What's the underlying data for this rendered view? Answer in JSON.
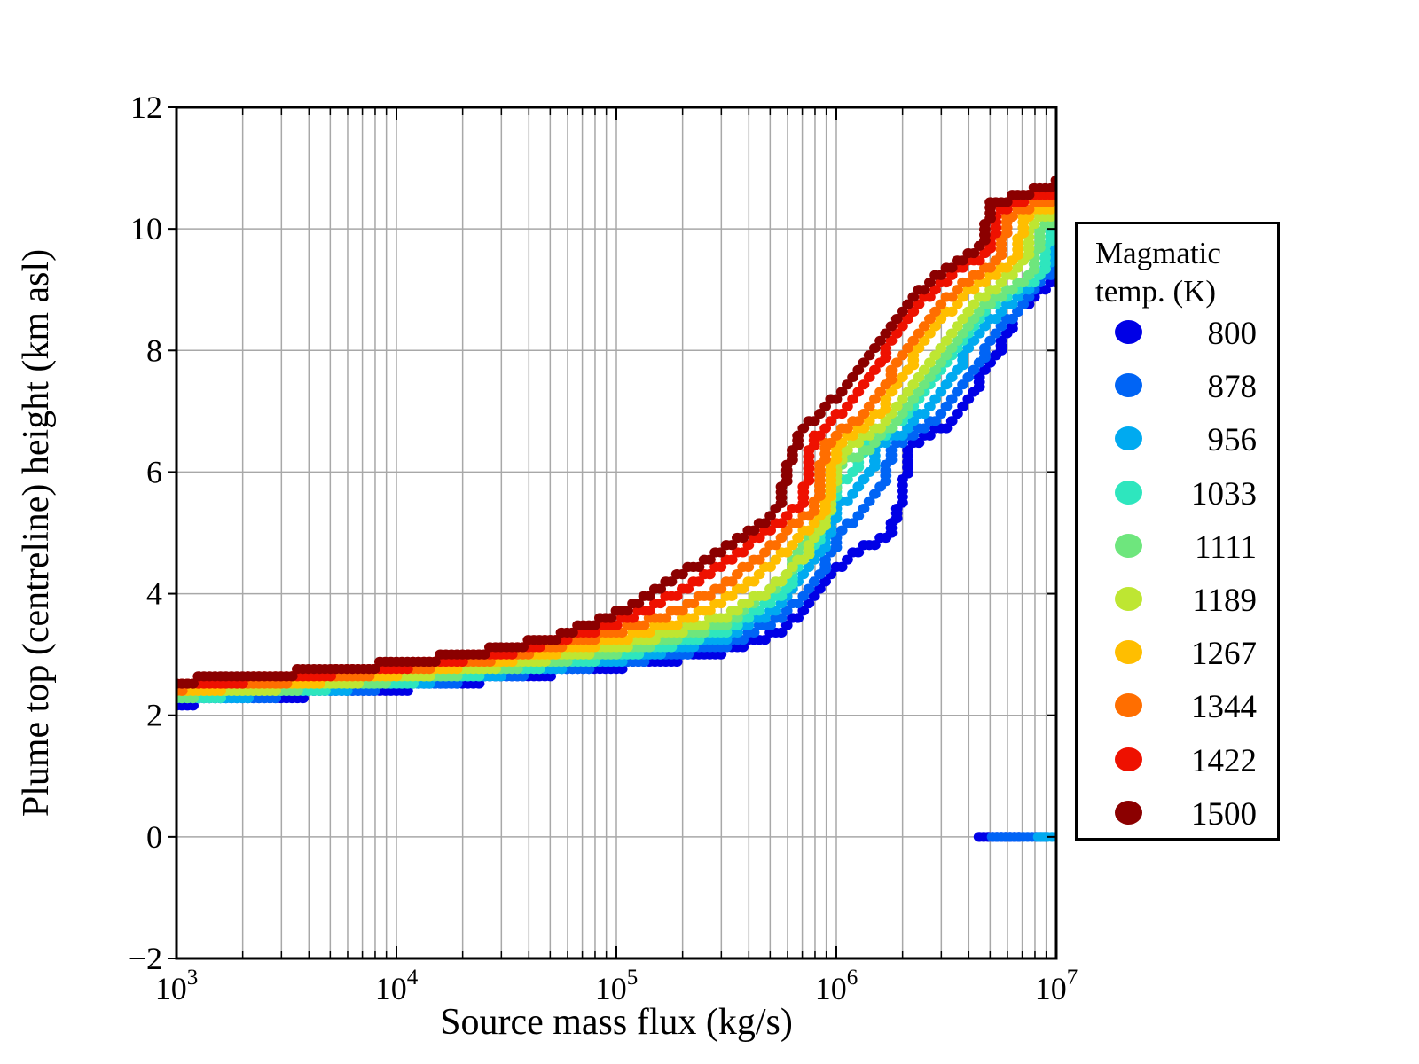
{
  "figure": {
    "background": "#ffffff",
    "frame_color": "#000000",
    "grid_color": "#a8a8a8"
  },
  "axes": {
    "x": {
      "label": "Source mass flux (kg/s)",
      "scale": "log",
      "min_log": 3,
      "max_log": 7,
      "major_ticks": [
        {
          "log": 3,
          "base": "10",
          "exp": "3"
        },
        {
          "log": 4,
          "base": "10",
          "exp": "4"
        },
        {
          "log": 5,
          "base": "10",
          "exp": "5"
        },
        {
          "log": 6,
          "base": "10",
          "exp": "6"
        },
        {
          "log": 7,
          "base": "10",
          "exp": "7"
        }
      ]
    },
    "y": {
      "label": "Plume top (centreline) height (km asl)",
      "min": -2,
      "max": 12,
      "major_ticks": [
        {
          "value": 12,
          "label": "12"
        },
        {
          "value": 10,
          "label": "10"
        },
        {
          "value": 8,
          "label": "8"
        },
        {
          "value": 6,
          "label": "6"
        },
        {
          "value": 4,
          "label": "4"
        },
        {
          "value": 2,
          "label": "2"
        },
        {
          "value": 0,
          "label": "0"
        },
        {
          "value": -2,
          "label": "−2"
        }
      ],
      "gridline_values": [
        10,
        8,
        6,
        4,
        2,
        0
      ]
    }
  },
  "legend": {
    "title_line1": "Magmatic",
    "title_line2": "temp. (K)",
    "entries": [
      {
        "label": "800",
        "color": "#0000e6"
      },
      {
        "label": "878",
        "color": "#0064f5"
      },
      {
        "label": "956",
        "color": "#00aaf0"
      },
      {
        "label": "1033",
        "color": "#2ee6be"
      },
      {
        "label": "1111",
        "color": "#6ee67d"
      },
      {
        "label": "1189",
        "color": "#bee632"
      },
      {
        "label": "1267",
        "color": "#ffbe00"
      },
      {
        "label": "1344",
        "color": "#ff6e00"
      },
      {
        "label": "1422",
        "color": "#ee1100"
      },
      {
        "label": "1500",
        "color": "#8b0000"
      }
    ]
  },
  "chart_data": {
    "type": "scatter",
    "title": "",
    "xlabel": "Source mass flux (kg/s)",
    "ylabel": "Plume top (centreline) height (km asl)",
    "x_scale": "log10",
    "xlim_log": [
      3,
      7
    ],
    "ylim": [
      -2,
      12
    ],
    "grid": true,
    "legend_position": "right",
    "marker": {
      "rx": 6.4,
      "ry": 5.6
    },
    "step_km": 0.12,
    "sample_step_log": 0.025,
    "series": [
      {
        "temp": 800,
        "color": "#0000e6",
        "points": [
          [
            3,
            2.2
          ],
          [
            3.5,
            2.32
          ],
          [
            4,
            2.44
          ],
          [
            4.5,
            2.62
          ],
          [
            5,
            2.8
          ],
          [
            5.25,
            2.92
          ],
          [
            5.5,
            3.06
          ],
          [
            5.75,
            3.4
          ],
          [
            5.9,
            3.9
          ],
          [
            6.0,
            4.39
          ],
          [
            6.1,
            4.7
          ],
          [
            6.23,
            4.97
          ],
          [
            6.27,
            5.3
          ],
          [
            6.32,
            6.3
          ],
          [
            6.38,
            6.55
          ],
          [
            6.5,
            6.75
          ],
          [
            6.6,
            7.2
          ],
          [
            6.7,
            7.8
          ],
          [
            6.8,
            8.5
          ],
          [
            6.9,
            8.9
          ],
          [
            7,
            9.15
          ]
        ]
      },
      {
        "temp": 878,
        "color": "#0064f5",
        "points": [
          [
            3,
            2.23
          ],
          [
            3.5,
            2.35
          ],
          [
            4,
            2.48
          ],
          [
            4.5,
            2.66
          ],
          [
            5,
            2.86
          ],
          [
            5.25,
            3.0
          ],
          [
            5.5,
            3.17
          ],
          [
            5.75,
            3.6
          ],
          [
            5.9,
            4.15
          ],
          [
            6.0,
            4.92
          ],
          [
            6.1,
            5.3
          ],
          [
            6.17,
            5.55
          ],
          [
            6.21,
            5.9
          ],
          [
            6.26,
            6.45
          ],
          [
            6.35,
            6.6
          ],
          [
            6.45,
            6.85
          ],
          [
            6.55,
            7.3
          ],
          [
            6.65,
            7.85
          ],
          [
            6.75,
            8.4
          ],
          [
            6.85,
            8.75
          ],
          [
            7,
            9.4
          ]
        ]
      },
      {
        "temp": 956,
        "color": "#00aaf0",
        "points": [
          [
            3,
            2.26
          ],
          [
            3.5,
            2.38
          ],
          [
            4,
            2.52
          ],
          [
            4.5,
            2.7
          ],
          [
            5,
            2.92
          ],
          [
            5.25,
            3.08
          ],
          [
            5.5,
            3.28
          ],
          [
            5.75,
            3.8
          ],
          [
            5.9,
            4.5
          ],
          [
            6.0,
            5.45
          ],
          [
            6.1,
            5.7
          ],
          [
            6.14,
            5.9
          ],
          [
            6.18,
            6.4
          ],
          [
            6.3,
            6.65
          ],
          [
            6.4,
            7.0
          ],
          [
            6.5,
            7.45
          ],
          [
            6.6,
            8.0
          ],
          [
            6.7,
            8.5
          ],
          [
            6.85,
            8.95
          ],
          [
            6.96,
            9.35
          ],
          [
            6.99,
            10.05
          ],
          [
            7,
            10.1
          ]
        ]
      },
      {
        "temp": 1033,
        "color": "#2ee6be",
        "points": [
          [
            3,
            2.29
          ],
          [
            3.5,
            2.41
          ],
          [
            4,
            2.55
          ],
          [
            4.5,
            2.74
          ],
          [
            5,
            2.98
          ],
          [
            5.25,
            3.16
          ],
          [
            5.5,
            3.4
          ],
          [
            5.75,
            4.0
          ],
          [
            5.9,
            4.8
          ],
          [
            6.0,
            5.79
          ],
          [
            6.08,
            5.95
          ],
          [
            6.12,
            6.45
          ],
          [
            6.25,
            6.7
          ],
          [
            6.35,
            7.05
          ],
          [
            6.45,
            7.5
          ],
          [
            6.55,
            8.05
          ],
          [
            6.65,
            8.55
          ],
          [
            6.8,
            9.0
          ],
          [
            6.92,
            9.2
          ],
          [
            6.96,
            9.95
          ],
          [
            7,
            10.12
          ]
        ]
      },
      {
        "temp": 1111,
        "color": "#6ee67d",
        "points": [
          [
            3,
            2.32
          ],
          [
            3.5,
            2.44
          ],
          [
            4,
            2.59
          ],
          [
            4.5,
            2.78
          ],
          [
            5,
            3.05
          ],
          [
            5.25,
            3.25
          ],
          [
            5.5,
            3.52
          ],
          [
            5.75,
            4.2
          ],
          [
            5.9,
            5.1
          ],
          [
            5.95,
            5.3
          ],
          [
            6.0,
            6.08
          ],
          [
            6.15,
            6.4
          ],
          [
            6.25,
            6.75
          ],
          [
            6.35,
            7.15
          ],
          [
            6.45,
            7.65
          ],
          [
            6.55,
            8.2
          ],
          [
            6.65,
            8.65
          ],
          [
            6.8,
            9.05
          ],
          [
            6.88,
            9.25
          ],
          [
            6.92,
            10.0
          ],
          [
            7,
            10.2
          ]
        ]
      },
      {
        "temp": 1189,
        "color": "#bee632",
        "points": [
          [
            3,
            2.35
          ],
          [
            3.5,
            2.47
          ],
          [
            4,
            2.63
          ],
          [
            4.5,
            2.83
          ],
          [
            5,
            3.12
          ],
          [
            5.25,
            3.35
          ],
          [
            5.5,
            3.65
          ],
          [
            5.7,
            4.05
          ],
          [
            5.85,
            4.6
          ],
          [
            5.95,
            5.25
          ],
          [
            6.01,
            6.33
          ],
          [
            6.15,
            6.6
          ],
          [
            6.25,
            6.95
          ],
          [
            6.35,
            7.4
          ],
          [
            6.45,
            7.95
          ],
          [
            6.55,
            8.45
          ],
          [
            6.65,
            8.85
          ],
          [
            6.78,
            9.2
          ],
          [
            6.84,
            9.35
          ],
          [
            6.88,
            10.05
          ],
          [
            7,
            10.3
          ]
        ]
      },
      {
        "temp": 1267,
        "color": "#ffbe00",
        "points": [
          [
            3,
            2.41
          ],
          [
            3.5,
            2.53
          ],
          [
            4,
            2.69
          ],
          [
            4.5,
            2.91
          ],
          [
            5,
            3.24
          ],
          [
            5.25,
            3.5
          ],
          [
            5.45,
            3.8
          ],
          [
            5.65,
            4.3
          ],
          [
            5.85,
            5.0
          ],
          [
            5.94,
            5.35
          ],
          [
            5.99,
            6.42
          ],
          [
            6.1,
            6.68
          ],
          [
            6.2,
            7.0
          ],
          [
            6.3,
            7.6
          ],
          [
            6.4,
            8.15
          ],
          [
            6.5,
            8.6
          ],
          [
            6.6,
            8.95
          ],
          [
            6.74,
            9.3
          ],
          [
            6.8,
            9.42
          ],
          [
            6.84,
            10.18
          ],
          [
            7,
            10.4
          ]
        ]
      },
      {
        "temp": 1344,
        "color": "#ff6e00",
        "points": [
          [
            3,
            2.45
          ],
          [
            3.5,
            2.58
          ],
          [
            4,
            2.74
          ],
          [
            4.5,
            2.97
          ],
          [
            5,
            3.37
          ],
          [
            5.25,
            3.68
          ],
          [
            5.45,
            4.05
          ],
          [
            5.65,
            4.6
          ],
          [
            5.8,
            5.1
          ],
          [
            5.89,
            5.35
          ],
          [
            5.94,
            6.45
          ],
          [
            6.1,
            6.85
          ],
          [
            6.2,
            7.3
          ],
          [
            6.3,
            7.95
          ],
          [
            6.4,
            8.45
          ],
          [
            6.5,
            8.85
          ],
          [
            6.6,
            9.15
          ],
          [
            6.72,
            9.45
          ],
          [
            6.78,
            10.22
          ],
          [
            6.9,
            10.42
          ],
          [
            7,
            10.5
          ]
        ]
      },
      {
        "temp": 1422,
        "color": "#ee1100",
        "points": [
          [
            3,
            2.5
          ],
          [
            3.5,
            2.63
          ],
          [
            4,
            2.79
          ],
          [
            4.5,
            3.03
          ],
          [
            5,
            3.5
          ],
          [
            5.2,
            3.85
          ],
          [
            5.4,
            4.3
          ],
          [
            5.6,
            4.8
          ],
          [
            5.78,
            5.3
          ],
          [
            5.84,
            5.5
          ],
          [
            5.88,
            6.5
          ],
          [
            6.0,
            6.91
          ],
          [
            6.1,
            7.3
          ],
          [
            6.2,
            7.85
          ],
          [
            6.3,
            8.4
          ],
          [
            6.4,
            8.85
          ],
          [
            6.5,
            9.15
          ],
          [
            6.6,
            9.45
          ],
          [
            6.68,
            9.58
          ],
          [
            6.73,
            10.3
          ],
          [
            6.85,
            10.48
          ],
          [
            7,
            10.6
          ]
        ]
      },
      {
        "temp": 1500,
        "color": "#8b0000",
        "points": [
          [
            3,
            2.56
          ],
          [
            3.5,
            2.69
          ],
          [
            4,
            2.85
          ],
          [
            4.5,
            3.1
          ],
          [
            4.75,
            3.32
          ],
          [
            5,
            3.66
          ],
          [
            5.2,
            4.1
          ],
          [
            5.4,
            4.55
          ],
          [
            5.6,
            5.0
          ],
          [
            5.72,
            5.28
          ],
          [
            5.78,
            6.2
          ],
          [
            5.82,
            6.6
          ],
          [
            5.9,
            6.88
          ],
          [
            6.0,
            7.25
          ],
          [
            6.1,
            7.7
          ],
          [
            6.2,
            8.2
          ],
          [
            6.3,
            8.65
          ],
          [
            6.4,
            9.05
          ],
          [
            6.5,
            9.35
          ],
          [
            6.6,
            9.6
          ],
          [
            6.65,
            9.66
          ],
          [
            6.69,
            10.4
          ],
          [
            6.8,
            10.52
          ],
          [
            6.9,
            10.63
          ],
          [
            7,
            10.75
          ]
        ]
      }
    ],
    "collapse_runs": [
      {
        "temp": 800,
        "color": "#0000e6",
        "height": 0,
        "from_log": 6.65,
        "to_log": 6.84
      },
      {
        "temp": 878,
        "color": "#0064f5",
        "height": 0,
        "from_log": 6.71,
        "to_log": 6.96
      },
      {
        "temp": 956,
        "color": "#00aaf0",
        "height": 0,
        "from_log": 6.92,
        "to_log": 7.0
      }
    ]
  }
}
